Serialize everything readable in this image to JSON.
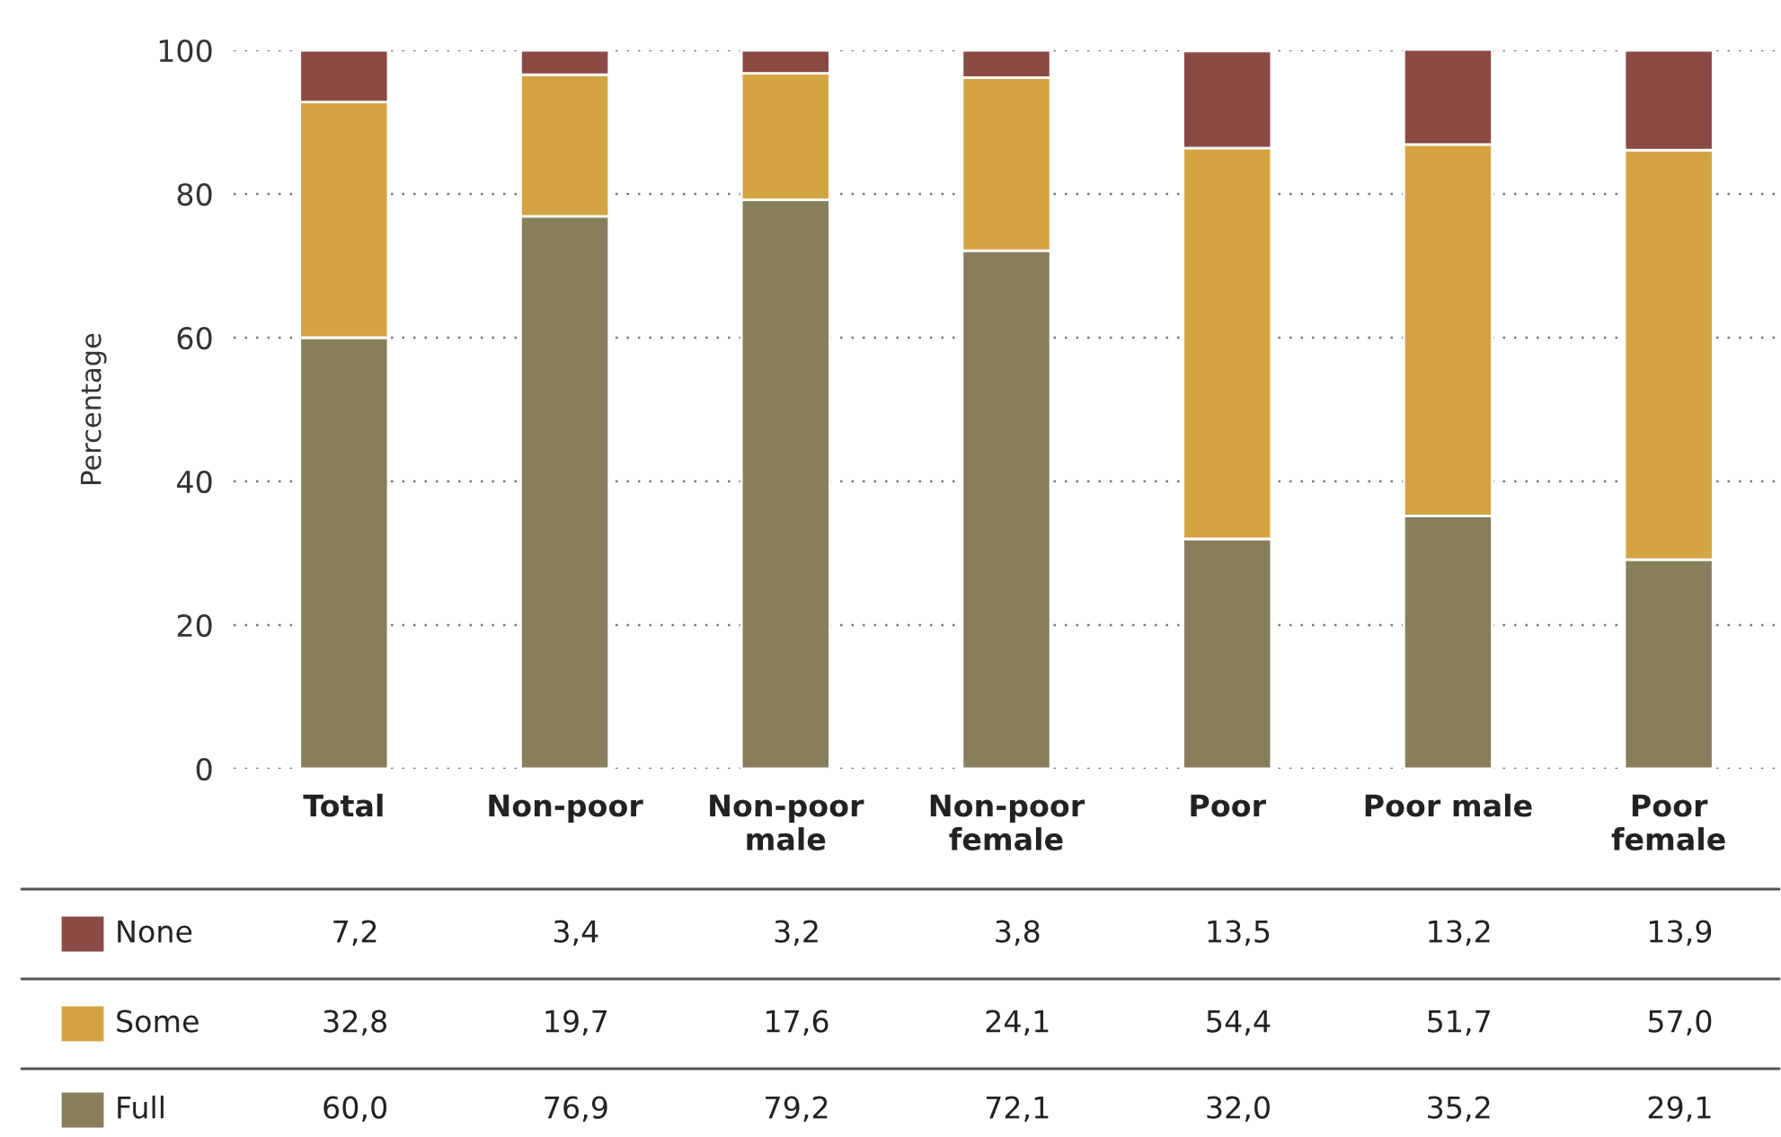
{
  "chart_data": {
    "type": "bar",
    "stacked": true,
    "ylabel": "Percentage",
    "categories": [
      "Total",
      "Non-poor",
      "Non-poor\nmale",
      "Non-poor\nfemale",
      "Poor",
      "Poor male",
      "Poor\nfemale"
    ],
    "series": [
      {
        "name": "Full",
        "color": "#877f5c",
        "values": [
          60.0,
          76.9,
          79.2,
          72.1,
          32.0,
          35.2,
          29.1
        ],
        "value_labels": [
          "60,0",
          "76,9",
          "79,2",
          "72,1",
          "32,0",
          "35,2",
          "29,1"
        ]
      },
      {
        "name": "Some",
        "color": "#d4a443",
        "values": [
          32.8,
          19.7,
          17.6,
          24.1,
          54.4,
          51.7,
          57.0
        ],
        "value_labels": [
          "32,8",
          "19,7",
          "17,6",
          "24,1",
          "54,4",
          "51,7",
          "57,0"
        ]
      },
      {
        "name": "None",
        "color": "#8b4a44",
        "values": [
          7.2,
          3.4,
          3.2,
          3.8,
          13.5,
          13.2,
          13.9
        ],
        "value_labels": [
          "7,2",
          "3,4",
          "3,2",
          "3,8",
          "13,5",
          "13,2",
          "13,9"
        ]
      }
    ],
    "ylim": [
      0,
      100
    ],
    "yticks": [
      0,
      20,
      40,
      60,
      80,
      100
    ],
    "grid": "y",
    "legend": "bottom"
  }
}
